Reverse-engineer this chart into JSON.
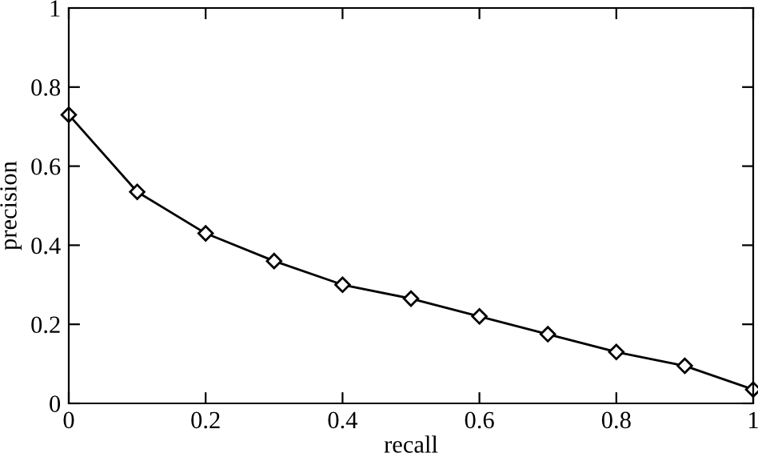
{
  "chart_data": {
    "type": "line",
    "xlabel": "recall",
    "ylabel": "precision",
    "x": [
      0,
      0.1,
      0.2,
      0.3,
      0.4,
      0.5,
      0.6,
      0.7,
      0.8,
      0.9,
      1
    ],
    "series": [
      {
        "color": "#000000",
        "values": [
          0.73,
          0.535,
          0.43,
          0.36,
          0.3,
          0.265,
          0.22,
          0.175,
          0.13,
          0.095,
          0.035
        ]
      }
    ],
    "xlim": [
      0,
      1
    ],
    "ylim": [
      0,
      1
    ],
    "xticks": [
      0,
      {
        "value": 0.2,
        "label": "0.2"
      },
      {
        "value": 0.4,
        "label": "0.4"
      },
      {
        "value": 0.6,
        "label": "0.6"
      },
      {
        "value": 0.8,
        "label": "0.8"
      },
      1
    ],
    "yticks": [
      0,
      {
        "value": 0.2,
        "label": "0.2"
      },
      {
        "value": 0.4,
        "label": "0.4"
      },
      {
        "value": 0.6,
        "label": "0.6"
      },
      {
        "value": 0.8,
        "label": "0.8"
      },
      1
    ],
    "marker": "diamond",
    "line_style": "solid",
    "grid": false,
    "legend": false
  }
}
